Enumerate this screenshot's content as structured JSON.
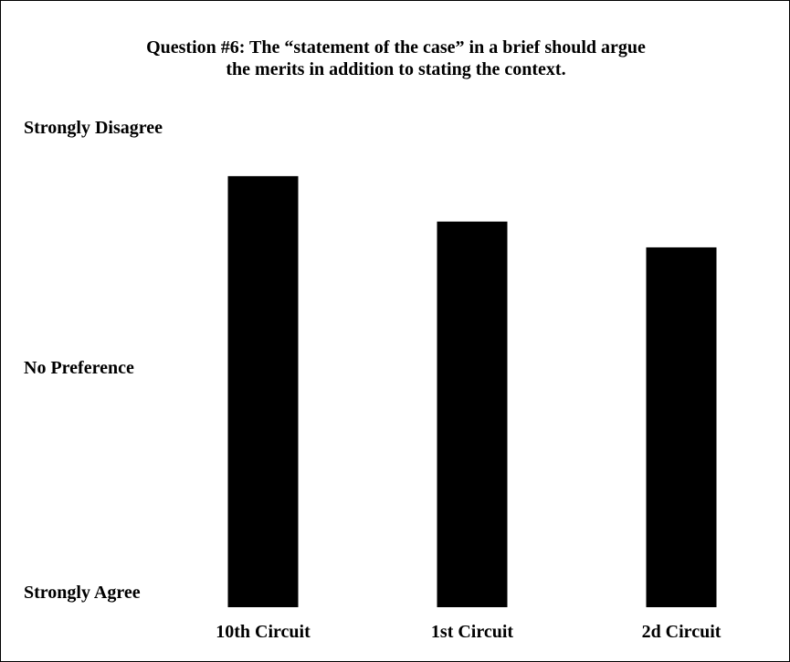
{
  "chart_data": {
    "type": "bar",
    "title_lines": [
      "Question #6: The “statement of the case” in a brief should argue",
      "the merits in addition to stating the context."
    ],
    "y_scale_labels": {
      "top": "Strongly Disagree",
      "middle": "No Preference",
      "bottom": "Strongly Agree"
    },
    "ylim": [
      1,
      5
    ],
    "categories": [
      "10th Circuit",
      "1st Circuit",
      "2d Circuit"
    ],
    "values": [
      4.51,
      4.14,
      3.93
    ],
    "bar_color": "#000000",
    "grid": false,
    "legend": "none"
  }
}
